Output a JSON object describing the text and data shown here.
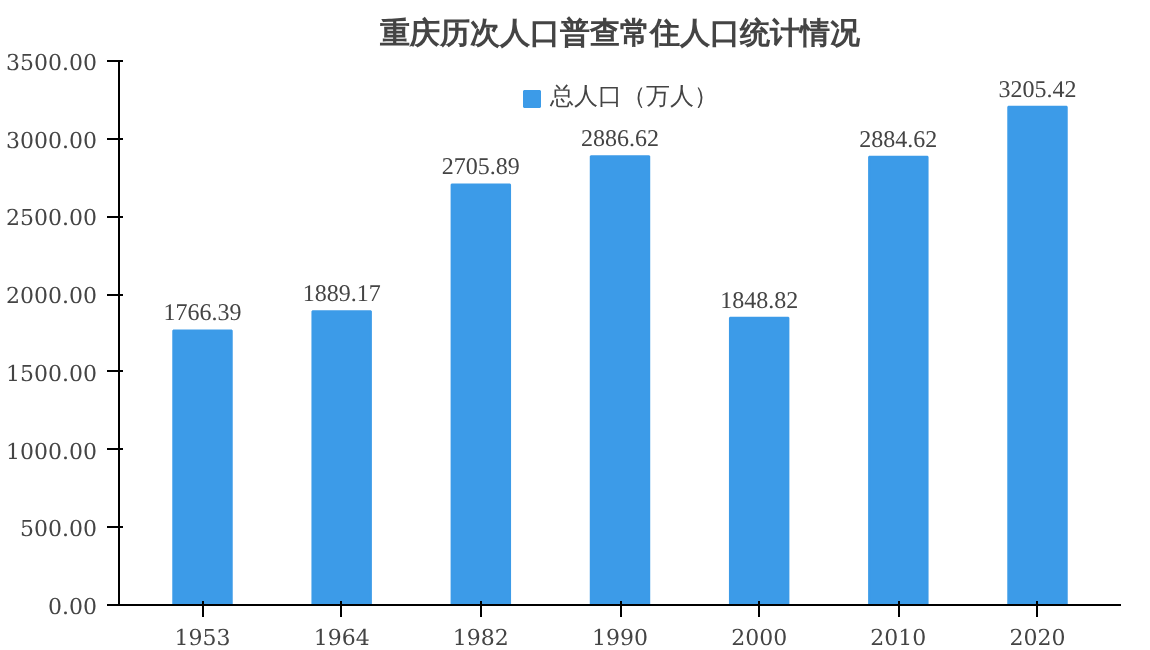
{
  "chart_data": {
    "type": "bar",
    "title": "重庆历次人口普查常住人口统计情况",
    "categories": [
      "1953",
      "1964",
      "1982",
      "1990",
      "2000",
      "2010",
      "2020"
    ],
    "series": [
      {
        "name": "总人口（万人）",
        "color": "#3c9be8",
        "values": [
          1766.39,
          1889.17,
          2705.89,
          2886.62,
          1848.82,
          2884.62,
          3205.42
        ]
      }
    ],
    "ylim": [
      0,
      3500
    ],
    "yticks": [
      {
        "value": 0,
        "label": "0.00"
      },
      {
        "value": 500,
        "label": "500.00"
      },
      {
        "value": 1000,
        "label": "1000.00"
      },
      {
        "value": 1500,
        "label": "1500.00"
      },
      {
        "value": 2000,
        "label": "2000.00"
      },
      {
        "value": 2500,
        "label": "2500.00"
      },
      {
        "value": 3000,
        "label": "3000.00"
      },
      {
        "value": 3500,
        "label": "3500.00"
      }
    ],
    "data_labels": true,
    "grid": false,
    "legend": "top"
  }
}
